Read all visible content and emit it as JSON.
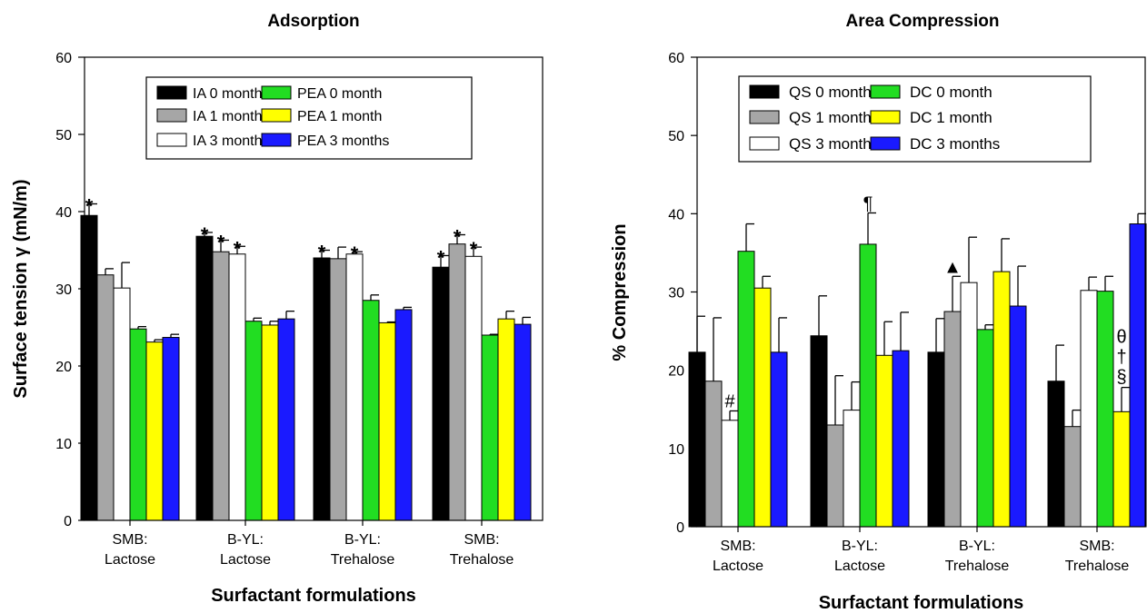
{
  "chart_data": [
    {
      "type": "bar",
      "title": "Adsorption",
      "xlabel": "Surfactant formulations",
      "ylabel": "Surface tension γ (mN/m)",
      "ylim": [
        0,
        60
      ],
      "yticks": [
        0,
        10,
        20,
        30,
        40,
        50,
        60
      ],
      "categories": [
        [
          "SMB:",
          "Lactose"
        ],
        [
          "B-YL:",
          "Lactose"
        ],
        [
          "B-YL:",
          "Trehalose"
        ],
        [
          "SMB:",
          "Trehalose"
        ]
      ],
      "legend_position": "top",
      "series": [
        {
          "name": "IA 0 month",
          "color": "#000000",
          "values": [
            39.5,
            36.8,
            34.0,
            32.8
          ],
          "errors": [
            1.5,
            0.5,
            1.0,
            1.5
          ]
        },
        {
          "name": "IA 1 month",
          "color": "#a6a6a6",
          "values": [
            31.8,
            34.8,
            33.9,
            35.8
          ],
          "errors": [
            0.8,
            1.5,
            1.5,
            1.2
          ]
        },
        {
          "name": "IA 3 months",
          "color": "#ffffff",
          "values": [
            30.1,
            34.5,
            34.5,
            34.2
          ],
          "errors": [
            3.3,
            1.0,
            0.3,
            1.2
          ]
        },
        {
          "name": "PEA 0 month",
          "color": "#22dd22",
          "values": [
            24.8,
            25.8,
            28.5,
            24.0
          ],
          "errors": [
            0.3,
            0.4,
            0.7,
            0.1
          ]
        },
        {
          "name": "PEA 1 month",
          "color": "#ffff00",
          "values": [
            23.1,
            25.3,
            25.6,
            26.1
          ],
          "errors": [
            0.3,
            0.5,
            0.1,
            1.0
          ]
        },
        {
          "name": "PEA 3 months",
          "color": "#1a1aff",
          "values": [
            23.7,
            26.1,
            27.3,
            25.4
          ],
          "errors": [
            0.4,
            1.0,
            0.3,
            0.9
          ]
        }
      ],
      "legend_order": [
        0,
        3,
        1,
        4,
        2,
        5
      ],
      "annotations": [
        {
          "symbol": "*",
          "category": 0,
          "series": 0
        },
        {
          "symbol": "*",
          "category": 1,
          "series": 0
        },
        {
          "symbol": "*",
          "category": 1,
          "series": 1
        },
        {
          "symbol": "*",
          "category": 1,
          "series": 2
        },
        {
          "symbol": "*",
          "category": 2,
          "series": 0
        },
        {
          "symbol": "*",
          "category": 2,
          "series": 2
        },
        {
          "symbol": "*",
          "category": 3,
          "series": 0
        },
        {
          "symbol": "*",
          "category": 3,
          "series": 1
        },
        {
          "symbol": "*",
          "category": 3,
          "series": 2
        }
      ]
    },
    {
      "type": "bar",
      "title": "Area Compression",
      "xlabel": "Surfactant formulations",
      "ylabel": "% Compression",
      "ylim": [
        0,
        60
      ],
      "yticks": [
        0,
        10,
        20,
        30,
        40,
        50,
        60
      ],
      "categories": [
        [
          "SMB:",
          "Lactose"
        ],
        [
          "B-YL:",
          "Lactose"
        ],
        [
          "B-YL:",
          "Trehalose"
        ],
        [
          "SMB:",
          "Trehalose"
        ]
      ],
      "legend_position": "top",
      "series": [
        {
          "name": "QS 0 month",
          "color": "#000000",
          "values": [
            22.3,
            24.4,
            22.3,
            18.6
          ],
          "errors": [
            4.6,
            5.1,
            4.3,
            4.6
          ]
        },
        {
          "name": "QS 1 month",
          "color": "#a6a6a6",
          "values": [
            18.6,
            13.0,
            27.5,
            12.8
          ],
          "errors": [
            8.1,
            6.3,
            4.5,
            2.1
          ]
        },
        {
          "name": "QS 3 months",
          "color": "#ffffff",
          "values": [
            13.6,
            14.9,
            31.2,
            30.2
          ],
          "errors": [
            1.2,
            3.6,
            5.8,
            1.7
          ]
        },
        {
          "name": "DC 0 month",
          "color": "#22dd22",
          "values": [
            35.2,
            36.1,
            25.2,
            30.1
          ],
          "errors": [
            3.5,
            4.0,
            0.6,
            1.9
          ]
        },
        {
          "name": "DC 1 month",
          "color": "#ffff00",
          "values": [
            30.5,
            21.9,
            32.6,
            14.7
          ],
          "errors": [
            1.5,
            4.3,
            4.2,
            3.1
          ]
        },
        {
          "name": "DC 3 months",
          "color": "#1a1aff",
          "values": [
            22.3,
            22.5,
            28.2,
            38.7
          ],
          "errors": [
            4.4,
            4.9,
            5.1,
            1.3
          ]
        }
      ],
      "legend_order": [
        0,
        3,
        1,
        4,
        2,
        5
      ],
      "annotations": [
        {
          "symbol": "#",
          "category": 0,
          "series": 2
        },
        {
          "symbol": "¶",
          "category": 1,
          "series": 3
        },
        {
          "symbol": "▲",
          "category": 2,
          "series": 1
        },
        {
          "symbol": "θ",
          "category": 3,
          "series": 4,
          "stack": 3
        },
        {
          "symbol": "†",
          "category": 3,
          "series": 4,
          "stack": 2
        },
        {
          "symbol": "§",
          "category": 3,
          "series": 4,
          "stack": 1
        }
      ]
    }
  ]
}
